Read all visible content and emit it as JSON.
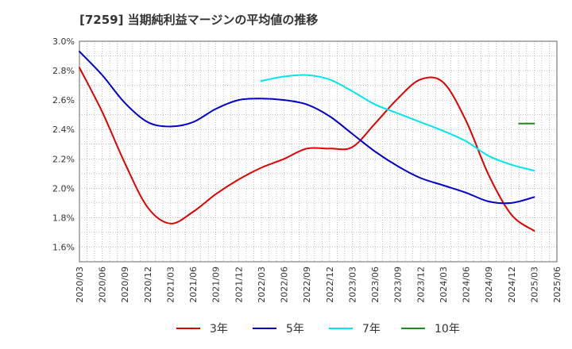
{
  "title": "[7259]  当期純利益マージンの平均値の推移",
  "colors": {
    "s3": "#e00000",
    "s5": "#0000cc",
    "s7": "#00e5ee",
    "s10": "#228822",
    "grid": "#999999",
    "axis": "#666666",
    "text": "#333333"
  },
  "chart_data": {
    "type": "line",
    "title": "[7259]  当期純利益マージンの平均値の推移",
    "xlabel": "",
    "ylabel": "",
    "x_ticks": [
      "2020/03",
      "2020/06",
      "2020/09",
      "2020/12",
      "2021/03",
      "2021/06",
      "2021/09",
      "2021/12",
      "2022/03",
      "2022/06",
      "2022/09",
      "2022/12",
      "2023/03",
      "2023/06",
      "2023/09",
      "2023/12",
      "2024/03",
      "2024/06",
      "2024/09",
      "2024/12",
      "2025/03",
      "2025/06"
    ],
    "y_ticks": [
      "1.6%",
      "1.8%",
      "2.0%",
      "2.2%",
      "2.4%",
      "2.6%",
      "2.8%",
      "3.0%"
    ],
    "ylim": [
      1.5,
      3.0
    ],
    "grid": true,
    "legend_position": "bottom",
    "series": [
      {
        "name": "3年",
        "color": "#e00000",
        "points": [
          [
            "2020/03",
            2.82
          ],
          [
            "2020/06",
            2.52
          ],
          [
            "2020/09",
            2.17
          ],
          [
            "2020/12",
            1.87
          ],
          [
            "2021/03",
            1.76
          ],
          [
            "2021/06",
            1.84
          ],
          [
            "2021/09",
            1.96
          ],
          [
            "2021/12",
            2.06
          ],
          [
            "2022/03",
            2.14
          ],
          [
            "2022/06",
            2.2
          ],
          [
            "2022/09",
            2.27
          ],
          [
            "2022/12",
            2.27
          ],
          [
            "2023/03",
            2.28
          ],
          [
            "2023/06",
            2.44
          ],
          [
            "2023/09",
            2.61
          ],
          [
            "2023/12",
            2.74
          ],
          [
            "2024/03",
            2.72
          ],
          [
            "2024/06",
            2.46
          ],
          [
            "2024/09",
            2.09
          ],
          [
            "2024/12",
            1.82
          ],
          [
            "2025/03",
            1.71
          ]
        ]
      },
      {
        "name": "5年",
        "color": "#0000cc",
        "points": [
          [
            "2020/03",
            2.93
          ],
          [
            "2020/06",
            2.77
          ],
          [
            "2020/09",
            2.58
          ],
          [
            "2020/12",
            2.45
          ],
          [
            "2021/03",
            2.42
          ],
          [
            "2021/06",
            2.45
          ],
          [
            "2021/09",
            2.54
          ],
          [
            "2021/12",
            2.6
          ],
          [
            "2022/03",
            2.61
          ],
          [
            "2022/06",
            2.6
          ],
          [
            "2022/09",
            2.57
          ],
          [
            "2022/12",
            2.49
          ],
          [
            "2023/03",
            2.37
          ],
          [
            "2023/06",
            2.25
          ],
          [
            "2023/09",
            2.15
          ],
          [
            "2023/12",
            2.07
          ],
          [
            "2024/03",
            2.02
          ],
          [
            "2024/06",
            1.97
          ],
          [
            "2024/09",
            1.91
          ],
          [
            "2024/12",
            1.9
          ],
          [
            "2025/03",
            1.94
          ]
        ]
      },
      {
        "name": "7年",
        "color": "#00e5ee",
        "points": [
          [
            "2022/03",
            2.73
          ],
          [
            "2022/06",
            2.76
          ],
          [
            "2022/09",
            2.77
          ],
          [
            "2022/12",
            2.74
          ],
          [
            "2023/03",
            2.66
          ],
          [
            "2023/06",
            2.57
          ],
          [
            "2023/09",
            2.51
          ],
          [
            "2023/12",
            2.45
          ],
          [
            "2024/03",
            2.39
          ],
          [
            "2024/06",
            2.32
          ],
          [
            "2024/09",
            2.22
          ],
          [
            "2024/12",
            2.16
          ],
          [
            "2025/03",
            2.12
          ]
        ]
      },
      {
        "name": "10年",
        "color": "#228822",
        "points": [
          [
            "2025/01",
            2.44
          ],
          [
            "2025/03",
            2.44
          ]
        ]
      }
    ]
  }
}
